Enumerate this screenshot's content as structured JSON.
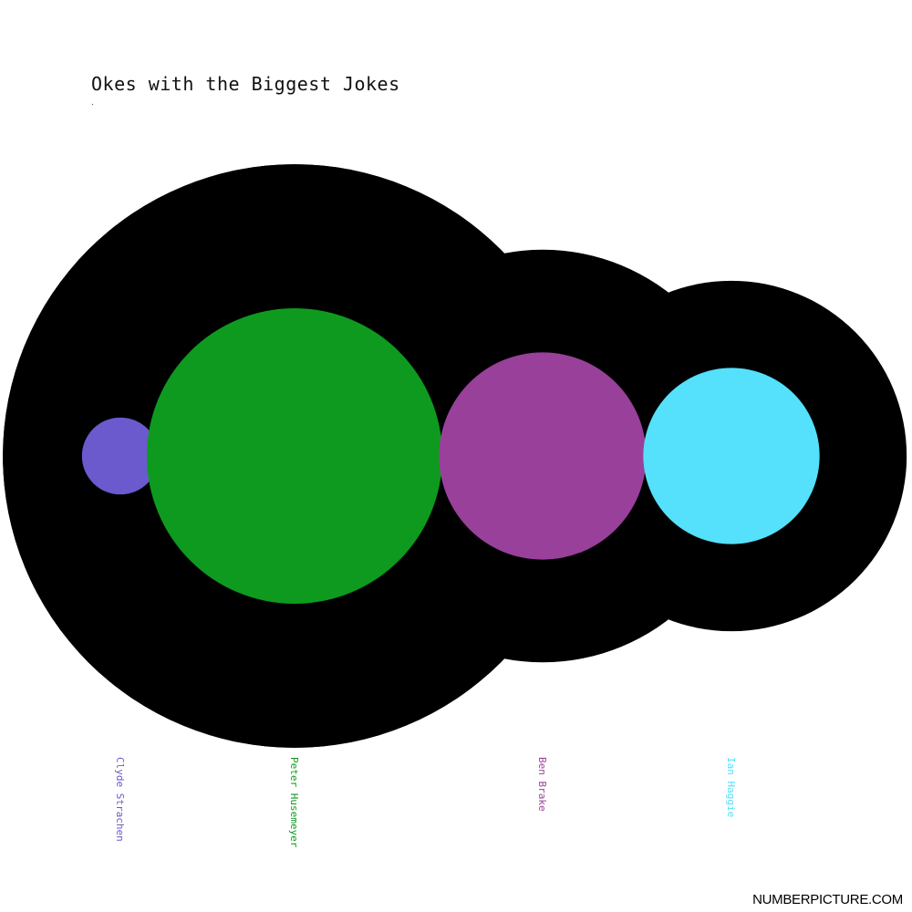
{
  "chart_data": {
    "type": "bubble",
    "title": "Okes with the Biggest Jokes",
    "subtitle": ".",
    "series": [
      {
        "name": "Clyde Strachen",
        "outer": 23,
        "inner": 0.4,
        "color": "#6a5acd"
      },
      {
        "name": "Peter Husemeyer",
        "outer": 23,
        "inner": 5.9,
        "color": "#0e9a1e"
      },
      {
        "name": "Ben Brake",
        "outer": 11.5,
        "inner": 2.9,
        "color": "#99409b"
      },
      {
        "name": "Ian Haggie",
        "outer": 8.3,
        "inner": 2.1,
        "color": "#55e0fb"
      }
    ]
  },
  "footer": {
    "brand": "NUMBERPICTURE.COM"
  }
}
